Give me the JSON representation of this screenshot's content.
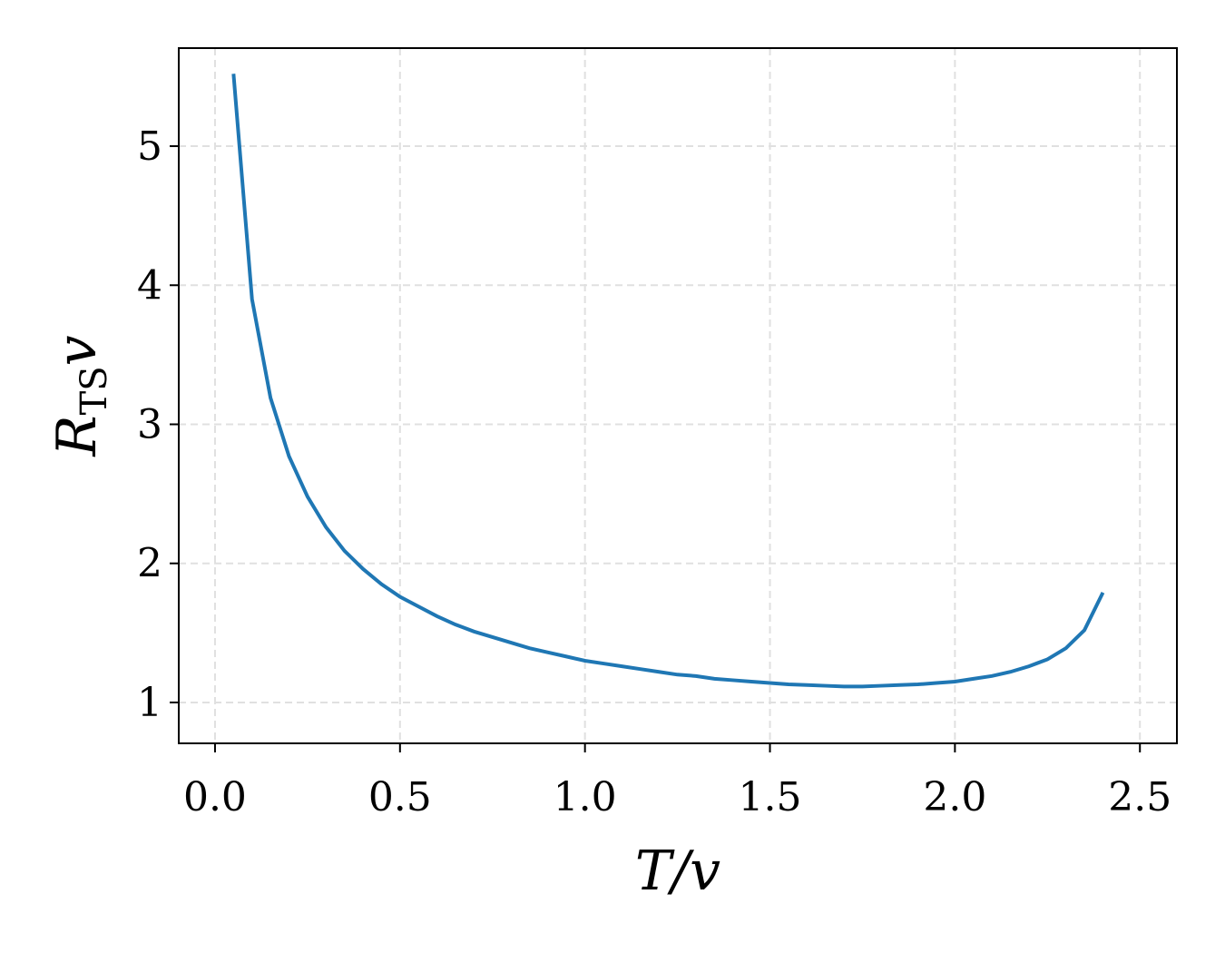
{
  "chart_data": {
    "type": "line",
    "xlabel": "T/v",
    "ylabel": {
      "main": "R",
      "sub": "TS",
      "tail": "v"
    },
    "x": [
      0.05,
      0.1,
      0.15,
      0.2,
      0.25,
      0.3,
      0.35,
      0.4,
      0.45,
      0.5,
      0.55,
      0.6,
      0.65,
      0.7,
      0.75,
      0.8,
      0.85,
      0.9,
      0.95,
      1.0,
      1.05,
      1.1,
      1.15,
      1.2,
      1.25,
      1.3,
      1.35,
      1.4,
      1.45,
      1.5,
      1.55,
      1.6,
      1.65,
      1.7,
      1.75,
      1.8,
      1.85,
      1.9,
      1.95,
      2.0,
      2.05,
      2.1,
      2.15,
      2.2,
      2.25,
      2.3,
      2.35,
      2.4
    ],
    "series": [
      {
        "color": "#1f77b4",
        "values": [
          5.52,
          3.9,
          3.19,
          2.77,
          2.48,
          2.26,
          2.09,
          1.96,
          1.85,
          1.76,
          1.69,
          1.62,
          1.56,
          1.51,
          1.47,
          1.43,
          1.39,
          1.36,
          1.33,
          1.3,
          1.28,
          1.26,
          1.24,
          1.22,
          1.2,
          1.19,
          1.17,
          1.16,
          1.15,
          1.14,
          1.13,
          1.125,
          1.12,
          1.115,
          1.115,
          1.12,
          1.125,
          1.13,
          1.14,
          1.15,
          1.17,
          1.19,
          1.22,
          1.26,
          1.31,
          1.39,
          1.52,
          1.79
        ]
      }
    ],
    "xlim": [
      -0.098,
      2.6
    ],
    "ylim": [
      0.706,
      5.705
    ],
    "xticks": [
      {
        "value": 0,
        "label": "0.0"
      },
      0.5,
      {
        "value": 1,
        "label": "1.0"
      },
      1.5,
      {
        "value": 2,
        "label": "2.0"
      },
      2.5
    ],
    "yticks": [
      1,
      2,
      3,
      4,
      5
    ],
    "grid": true
  }
}
